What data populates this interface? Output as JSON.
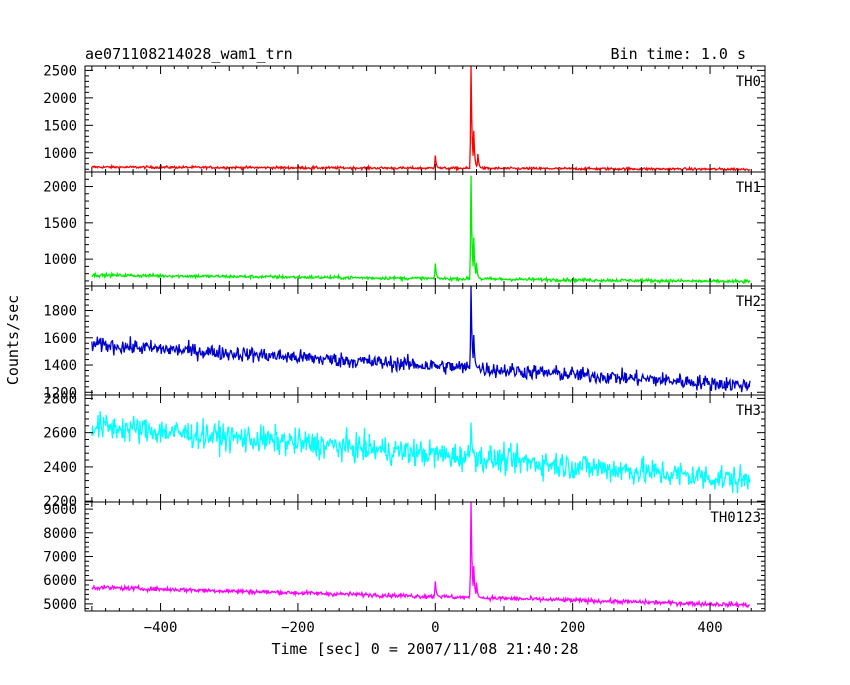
{
  "header": {
    "title": "ae071108214028_wam1_trn",
    "bin_time": "Bin time: 1.0 s"
  },
  "chart_data": {
    "type": "line",
    "title": "ae071108214028_wam1_trn",
    "subtitle": "Bin time: 1.0 s",
    "xlabel": "Time [sec] 0 = 2007/11/08 21:40:28",
    "ylabel": "Counts/sec",
    "xlim": [
      -510,
      480
    ],
    "x_ticks": [
      -400,
      -200,
      0,
      200,
      400
    ],
    "x_tick_labels": [
      "−400",
      "−200",
      "0",
      "200",
      "400"
    ],
    "grid": false,
    "panels": [
      {
        "label": "TH0",
        "color": "#ff0000",
        "ylim": [
          650,
          2580
        ],
        "y_ticks": [
          1000,
          1500,
          2000,
          2500
        ],
        "y_tick_labels": [
          "1000",
          "1500",
          "2000",
          "2500"
        ],
        "baseline_start": 740,
        "baseline_end": 700,
        "noise": 45,
        "events": [
          {
            "t": 0,
            "peak": 950
          },
          {
            "t": 52,
            "peak": 2580
          },
          {
            "t": 56,
            "peak": 1400
          },
          {
            "t": 62,
            "peak": 980
          }
        ]
      },
      {
        "label": "TH1",
        "color": "#00ee00",
        "ylim": [
          630,
          2200
        ],
        "y_ticks": [
          1000,
          1500,
          2000
        ],
        "y_tick_labels": [
          "1000",
          "1500",
          "2000"
        ],
        "baseline_start": 780,
        "baseline_end": 690,
        "noise": 45,
        "events": [
          {
            "t": 0,
            "peak": 940
          },
          {
            "t": 52,
            "peak": 2150
          },
          {
            "t": 56,
            "peak": 1300
          },
          {
            "t": 60,
            "peak": 950
          }
        ]
      },
      {
        "label": "TH2",
        "color": "#0000cc",
        "ylim": [
          1180,
          1980
        ],
        "y_ticks": [
          1200,
          1400,
          1600,
          1800
        ],
        "y_tick_labels": [
          "1200",
          "1400",
          "1600",
          "1800"
        ],
        "baseline_start": 1550,
        "baseline_end": 1250,
        "noise": 110,
        "events": [
          {
            "t": 52,
            "peak": 1980
          },
          {
            "t": 56,
            "peak": 1620
          }
        ]
      },
      {
        "label": "TH3",
        "color": "#00ffff",
        "ylim": [
          2195,
          2820
        ],
        "y_ticks": [
          2200,
          2400,
          2600,
          2800
        ],
        "y_tick_labels": [
          "2200",
          "2400",
          "2600",
          "2800"
        ],
        "baseline_start": 2640,
        "baseline_end": 2320,
        "noise": 160,
        "events": [
          {
            "t": 52,
            "peak": 2660
          }
        ]
      },
      {
        "label": "TH0123",
        "color": "#ff00ff",
        "ylim": [
          4700,
          9300
        ],
        "y_ticks": [
          5000,
          6000,
          7000,
          8000,
          9000
        ],
        "y_tick_labels": [
          "5000",
          "6000",
          "7000",
          "8000",
          "9000"
        ],
        "baseline_start": 5700,
        "baseline_end": 4950,
        "noise": 180,
        "events": [
          {
            "t": 0,
            "peak": 5950
          },
          {
            "t": 52,
            "peak": 9300
          },
          {
            "t": 56,
            "peak": 6600
          },
          {
            "t": 60,
            "peak": 5900
          }
        ]
      }
    ]
  }
}
